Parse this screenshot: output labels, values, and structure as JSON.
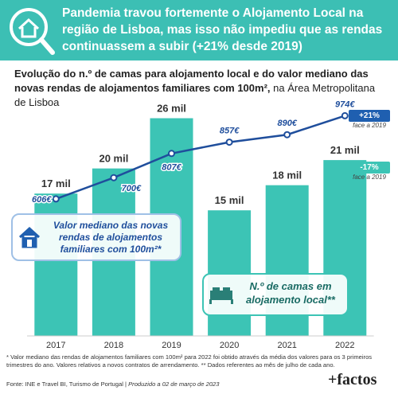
{
  "header": {
    "title": "Pandemia travou fortemente o Alojamento Local na região de Lisboa, mas isso não impediu que as rendas continuassem a subir (+21% desde 2019)"
  },
  "chart_data": {
    "type": "bar",
    "title": "Evolução do n.º de camas para alojamento local e do valor mediano das novas rendas de alojamentos familiares com 100m²,",
    "subtitle": "na Área Metropolitana de Lisboa",
    "categories": [
      "2017",
      "2018",
      "2019",
      "2020",
      "2021",
      "2022"
    ],
    "ylim": [
      0,
      27
    ],
    "y2lim": [
      0,
      1000
    ],
    "series": [
      {
        "name": "N.º de camas em alojamento local**",
        "type": "bar",
        "color": "#3cc4b5",
        "values": [
          17,
          20,
          26,
          15,
          18,
          21
        ],
        "value_labels": [
          "17 mil",
          "20 mil",
          "26 mil",
          "15 mil",
          "18 mil",
          "21 mil"
        ]
      },
      {
        "name": "Valor mediano das novas rendas de alojamentos familiares com 100m²*",
        "type": "line",
        "axis": "y2",
        "color": "#1f4e9c",
        "values": [
          606,
          700,
          807,
          857,
          890,
          974
        ],
        "value_labels": [
          "606€",
          "700€",
          "807€",
          "857€",
          "890€",
          "974€"
        ]
      }
    ],
    "annotations": [
      {
        "label": "+21%",
        "note": "face a 2019",
        "color": "#1f5fb0"
      },
      {
        "label": "-17%",
        "note": "face a 2019",
        "color": "#3cc4b5"
      }
    ],
    "footnote": "* Valor mediano das rendas de alojamentos familiares com 100m² para 2022 foi obtido através da média dos valores para os 3 primeiros trimestres do ano. Valores relativos a novos contratos de arrendamento. ** Dados referentes ao mês de julho de cada ano.",
    "source": "Fonte: INE e Travel BI, Turismo de Portugal |",
    "produced": "Produzido a 02 de março de 2023"
  },
  "logo": "+factos"
}
